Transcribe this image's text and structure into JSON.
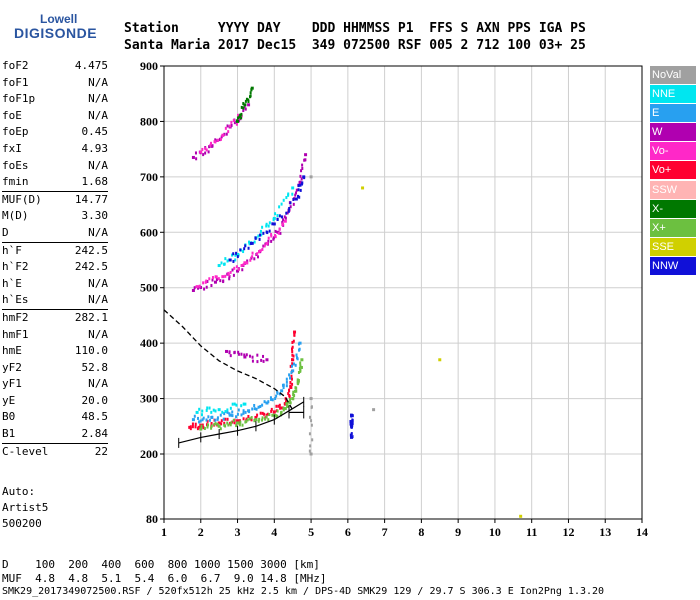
{
  "logo": {
    "line1": "Lowell",
    "line2": "DIGISONDE"
  },
  "header": {
    "line1": "Station     YYYY DAY    DDD HHMMSS P1  FFS S AXN PPS IGA PS",
    "line2": "Santa Maria 2017 Dec15  349 072500 RSF 005 2 712 100 03+ 25"
  },
  "params": [
    {
      "label": "foF2",
      "value": "4.475"
    },
    {
      "label": "foF1",
      "value": "N/A"
    },
    {
      "label": "foF1p",
      "value": "N/A"
    },
    {
      "label": "foE",
      "value": "N/A"
    },
    {
      "label": "foEp",
      "value": "0.45"
    },
    {
      "label": "fxI",
      "value": "4.93"
    },
    {
      "label": "foEs",
      "value": "N/A"
    },
    {
      "label": "fmin",
      "value": "1.68"
    },
    {
      "label": "MUF(D)",
      "value": "14.77"
    },
    {
      "label": "M(D)",
      "value": "3.30"
    },
    {
      "label": "D",
      "value": "N/A"
    },
    {
      "label": "h`F",
      "value": "242.5"
    },
    {
      "label": "h`F2",
      "value": "242.5"
    },
    {
      "label": "h`E",
      "value": "N/A"
    },
    {
      "label": "h`Es",
      "value": "N/A"
    },
    {
      "label": "hmF2",
      "value": "282.1"
    },
    {
      "label": "hmF1",
      "value": "N/A"
    },
    {
      "label": "hmE",
      "value": "110.0"
    },
    {
      "label": "yF2",
      "value": "52.8"
    },
    {
      "label": "yF1",
      "value": "N/A"
    },
    {
      "label": "yE",
      "value": "20.0"
    },
    {
      "label": "B0",
      "value": "48.5"
    },
    {
      "label": "B1",
      "value": "2.84"
    },
    {
      "label": "C-level",
      "value": "22"
    }
  ],
  "auto": {
    "line1": "Auto:",
    "line2": "Artist5",
    "line3": "500200"
  },
  "footer": {
    "d_row": "D    100  200  400  600  800 1000 1500 3000 [km]",
    "muf_row": "MUF  4.8  4.8  5.1  5.4  6.0  6.7  9.0 14.8 [MHz]",
    "system": "SMK29_2017349072500.RSF / 520fx512h 25 kHz 2.5 km / DPS-4D SMK29 129 / 29.7 S 306.3 E Ion2Png 1.3.20"
  },
  "legend": [
    {
      "label": "NoVal",
      "color": "#a0a0a0"
    },
    {
      "label": "NNE",
      "color": "#00e6f0"
    },
    {
      "label": "E",
      "color": "#28a0f0"
    },
    {
      "label": "W",
      "color": "#b000b0"
    },
    {
      "label": "Vo-",
      "color": "#ff28c8"
    },
    {
      "label": "Vo+",
      "color": "#ff0030"
    },
    {
      "label": "SSW",
      "color": "#ffb4b4"
    },
    {
      "label": "X-",
      "color": "#007800"
    },
    {
      "label": "X+",
      "color": "#6cc040"
    },
    {
      "label": "SSE",
      "color": "#d0d000"
    },
    {
      "label": "NNW",
      "color": "#1010d8"
    }
  ],
  "chart_data": {
    "type": "scatter",
    "x_ticks": [
      "1",
      "2",
      "3",
      "4",
      "5",
      "6",
      "7",
      "8",
      "9",
      "10",
      "11",
      "12",
      "13",
      "14"
    ],
    "y_ticks": [
      "80",
      "200",
      "300",
      "400",
      "500",
      "600",
      "700",
      "800",
      "900"
    ],
    "xlim": [
      1,
      14
    ],
    "ylim": [
      80,
      900
    ],
    "xlabel": "",
    "ylabel": "",
    "grid": true,
    "series": [
      {
        "name": "Vo+",
        "color": "#ff0030",
        "points": [
          [
            1.7,
            248
          ],
          [
            2.0,
            252
          ],
          [
            2.5,
            256
          ],
          [
            3.0,
            260
          ],
          [
            3.5,
            266
          ],
          [
            4.0,
            276
          ],
          [
            4.3,
            290
          ],
          [
            4.45,
            320
          ],
          [
            4.5,
            370
          ],
          [
            4.55,
            420
          ]
        ]
      },
      {
        "name": "X+",
        "color": "#6cc040",
        "points": [
          [
            2.0,
            245
          ],
          [
            2.5,
            250
          ],
          [
            3.0,
            256
          ],
          [
            3.5,
            262
          ],
          [
            4.0,
            270
          ],
          [
            4.3,
            282
          ],
          [
            4.5,
            300
          ],
          [
            4.65,
            330
          ],
          [
            4.75,
            370
          ]
        ]
      },
      {
        "name": "E",
        "color": "#28a0f0",
        "points": [
          [
            1.8,
            262
          ],
          [
            2.3,
            266
          ],
          [
            2.8,
            270
          ],
          [
            3.3,
            278
          ],
          [
            3.8,
            292
          ],
          [
            4.2,
            314
          ],
          [
            4.5,
            350
          ],
          [
            4.7,
            400
          ]
        ]
      },
      {
        "name": "W",
        "color": "#b000b0",
        "points": [
          [
            1.8,
            495
          ],
          [
            2.4,
            510
          ],
          [
            3.0,
            530
          ],
          [
            3.6,
            565
          ],
          [
            4.1,
            600
          ],
          [
            4.4,
            640
          ],
          [
            4.7,
            690
          ],
          [
            4.85,
            740
          ],
          [
            2.7,
            385
          ],
          [
            3.2,
            375
          ],
          [
            3.8,
            370
          ],
          [
            1.8,
            735
          ],
          [
            2.3,
            755
          ],
          [
            2.8,
            790
          ],
          [
            3.3,
            830
          ]
        ]
      },
      {
        "name": "Vo-",
        "color": "#ff28c8",
        "points": [
          [
            1.9,
            502
          ],
          [
            2.6,
            520
          ],
          [
            3.2,
            545
          ],
          [
            3.8,
            580
          ],
          [
            4.3,
            620
          ],
          [
            2.0,
            745
          ],
          [
            2.6,
            775
          ],
          [
            3.1,
            810
          ]
        ]
      },
      {
        "name": "NNE",
        "color": "#00e6f0",
        "points": [
          [
            2.5,
            540
          ],
          [
            3.0,
            560
          ],
          [
            3.5,
            590
          ],
          [
            4.0,
            625
          ],
          [
            4.5,
            680
          ],
          [
            1.9,
            275
          ],
          [
            2.5,
            280
          ],
          [
            3.2,
            290
          ]
        ]
      },
      {
        "name": "NNW",
        "color": "#1010d8",
        "points": [
          [
            2.8,
            550
          ],
          [
            3.4,
            580
          ],
          [
            4.0,
            615
          ],
          [
            4.6,
            660
          ],
          [
            4.8,
            700
          ],
          [
            6.1,
            250
          ],
          [
            6.1,
            270
          ],
          [
            6.1,
            230
          ]
        ]
      },
      {
        "name": "X-",
        "color": "#007800",
        "points": [
          [
            3.0,
            800
          ],
          [
            3.2,
            830
          ],
          [
            3.4,
            860
          ]
        ]
      },
      {
        "name": "SSE",
        "color": "#d0d000",
        "points": [
          [
            6.4,
            680
          ],
          [
            8.5,
            370
          ],
          [
            10.7,
            85
          ]
        ]
      },
      {
        "name": "NoVal",
        "color": "#a0a0a0",
        "points": [
          [
            5.0,
            200
          ],
          [
            5.0,
            300
          ],
          [
            5.0,
            700
          ],
          [
            6.7,
            280
          ]
        ]
      }
    ],
    "trace_virtual": [
      [
        1.4,
        220
      ],
      [
        2.0,
        230
      ],
      [
        2.5,
        236
      ],
      [
        3.0,
        242
      ],
      [
        3.5,
        250
      ],
      [
        4.0,
        262
      ],
      [
        4.4,
        278
      ],
      [
        4.8,
        294
      ]
    ],
    "trace_virtual_marked": [
      [
        4.4,
        275
      ],
      [
        4.8,
        275
      ]
    ],
    "profile_true": [
      [
        1.0,
        460
      ],
      [
        1.5,
        430
      ],
      [
        2.0,
        395
      ],
      [
        2.5,
        368
      ],
      [
        3.0,
        350
      ],
      [
        3.5,
        336
      ],
      [
        4.0,
        318
      ],
      [
        4.3,
        303
      ],
      [
        4.475,
        282
      ]
    ]
  }
}
